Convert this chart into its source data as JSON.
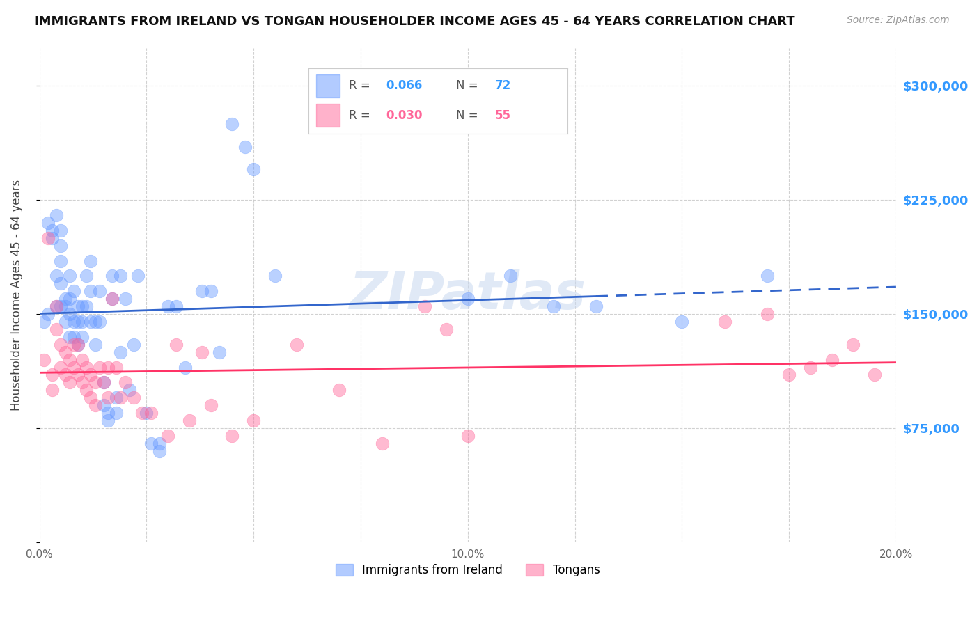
{
  "title": "IMMIGRANTS FROM IRELAND VS TONGAN HOUSEHOLDER INCOME AGES 45 - 64 YEARS CORRELATION CHART",
  "source": "Source: ZipAtlas.com",
  "ylabel": "Householder Income Ages 45 - 64 years",
  "xlim": [
    0.0,
    0.2
  ],
  "ylim": [
    0,
    325000
  ],
  "yticks": [
    0,
    75000,
    150000,
    225000,
    300000
  ],
  "ytick_labels": [
    "",
    "$75,000",
    "$150,000",
    "$225,000",
    "$300,000"
  ],
  "xtick_positions": [
    0.0,
    0.025,
    0.05,
    0.075,
    0.1,
    0.125,
    0.15,
    0.175,
    0.2
  ],
  "xtick_labels": [
    "0.0%",
    "",
    "",
    "",
    "10.0%",
    "",
    "",
    "",
    "20.0%"
  ],
  "ireland_R": 0.066,
  "ireland_N": 72,
  "tongan_R": 0.03,
  "tongan_N": 55,
  "ireland_color": "#6699ff",
  "tongan_color": "#ff6699",
  "ireland_line_color": "#3366cc",
  "tongan_line_color": "#ff3366",
  "background_color": "#ffffff",
  "grid_color": "#cccccc",
  "ireland_x": [
    0.001,
    0.002,
    0.002,
    0.003,
    0.003,
    0.004,
    0.004,
    0.004,
    0.005,
    0.005,
    0.005,
    0.005,
    0.005,
    0.006,
    0.006,
    0.006,
    0.007,
    0.007,
    0.007,
    0.007,
    0.008,
    0.008,
    0.008,
    0.009,
    0.009,
    0.009,
    0.01,
    0.01,
    0.01,
    0.011,
    0.011,
    0.012,
    0.012,
    0.012,
    0.013,
    0.013,
    0.014,
    0.014,
    0.015,
    0.015,
    0.016,
    0.016,
    0.017,
    0.017,
    0.018,
    0.018,
    0.019,
    0.019,
    0.02,
    0.021,
    0.022,
    0.023,
    0.025,
    0.026,
    0.028,
    0.028,
    0.03,
    0.032,
    0.034,
    0.038,
    0.04,
    0.042,
    0.045,
    0.048,
    0.05,
    0.055,
    0.1,
    0.11,
    0.12,
    0.13,
    0.15,
    0.17
  ],
  "ireland_y": [
    145000,
    210000,
    150000,
    205000,
    200000,
    215000,
    175000,
    155000,
    205000,
    195000,
    185000,
    170000,
    155000,
    160000,
    155000,
    145000,
    175000,
    160000,
    150000,
    135000,
    165000,
    145000,
    135000,
    155000,
    145000,
    130000,
    155000,
    145000,
    135000,
    175000,
    155000,
    185000,
    165000,
    145000,
    145000,
    130000,
    165000,
    145000,
    105000,
    90000,
    85000,
    80000,
    175000,
    160000,
    95000,
    85000,
    175000,
    125000,
    160000,
    100000,
    130000,
    175000,
    85000,
    65000,
    65000,
    60000,
    155000,
    155000,
    115000,
    165000,
    165000,
    125000,
    275000,
    260000,
    245000,
    175000,
    160000,
    175000,
    155000,
    155000,
    145000,
    175000
  ],
  "tongan_x": [
    0.001,
    0.002,
    0.003,
    0.003,
    0.004,
    0.004,
    0.005,
    0.005,
    0.006,
    0.006,
    0.007,
    0.007,
    0.008,
    0.008,
    0.009,
    0.009,
    0.01,
    0.01,
    0.011,
    0.011,
    0.012,
    0.012,
    0.013,
    0.013,
    0.014,
    0.015,
    0.016,
    0.016,
    0.017,
    0.018,
    0.019,
    0.02,
    0.022,
    0.024,
    0.026,
    0.03,
    0.032,
    0.035,
    0.038,
    0.04,
    0.045,
    0.05,
    0.06,
    0.07,
    0.08,
    0.09,
    0.095,
    0.1,
    0.16,
    0.17,
    0.175,
    0.18,
    0.185,
    0.19,
    0.195
  ],
  "tongan_y": [
    120000,
    200000,
    110000,
    100000,
    155000,
    140000,
    130000,
    115000,
    125000,
    110000,
    120000,
    105000,
    130000,
    115000,
    130000,
    110000,
    120000,
    105000,
    115000,
    100000,
    110000,
    95000,
    105000,
    90000,
    115000,
    105000,
    115000,
    95000,
    160000,
    115000,
    95000,
    105000,
    95000,
    85000,
    85000,
    70000,
    130000,
    80000,
    125000,
    90000,
    70000,
    80000,
    130000,
    100000,
    65000,
    155000,
    140000,
    70000,
    145000,
    150000,
    110000,
    115000,
    120000,
    130000,
    110000
  ]
}
